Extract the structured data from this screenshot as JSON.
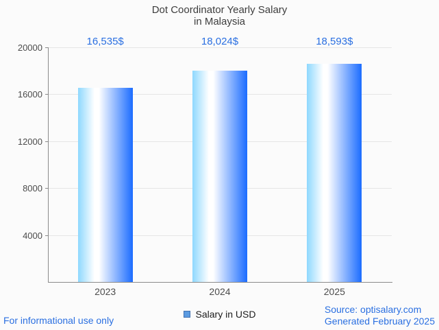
{
  "title": "Dot Coordinator Yearly Salary\nin Malaysia",
  "chart_data": {
    "type": "bar",
    "title": "Dot Coordinator Yearly Salary in Malaysia",
    "categories": [
      "2023",
      "2024",
      "2025"
    ],
    "series": [
      {
        "name": "Salary in USD",
        "values": [
          16535,
          18024,
          18593
        ],
        "value_labels": [
          "16,535$",
          "18,024$",
          "18,593$"
        ]
      }
    ],
    "xlabel": "",
    "ylabel": "",
    "ylim": [
      0,
      20000
    ],
    "yticks": [
      4000,
      8000,
      12000,
      16000,
      20000
    ],
    "grid": true,
    "legend_position": "bottom"
  },
  "legend": {
    "label": "Salary in USD"
  },
  "footer": {
    "left": "For informational use only",
    "right": "Source: optisalary.com\nGenerated February 2025"
  },
  "colors": {
    "accent_blue": "#2a6fe1",
    "title": "#3d3d3d",
    "axis_label": "#4c4c4c",
    "grid_line": "#e5e5e5",
    "axis_line": "#8a8a8a",
    "background": "#fbfbfb",
    "bar_gradient_left": "#8ed8fe",
    "bar_gradient_mid": "#ffffff",
    "bar_gradient_right": "#1b6cff",
    "legend_swatch_fill": "#5b9be1",
    "legend_swatch_border": "#4170b0"
  }
}
